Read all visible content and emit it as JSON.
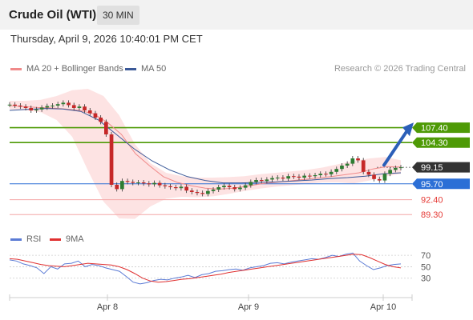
{
  "header": {
    "title": "Crude Oil (WTI)",
    "interval": "30 MIN"
  },
  "datetime": "Thursday, April 9, 2026 10:40:01 PM CET",
  "legend": {
    "ma20": {
      "label": "MA 20 + Bollinger Bands",
      "color": "#f08a8a"
    },
    "ma50": {
      "label": "MA 50",
      "color": "#3b5998"
    },
    "credit": "Research © 2026 Trading Central"
  },
  "rsi_legend": {
    "rsi": {
      "label": "RSI",
      "color": "#5b7bd5"
    },
    "ma9": {
      "label": "9MA",
      "color": "#e03030"
    }
  },
  "colors": {
    "resistance": "#4e9a06",
    "support": "#f4a6a6",
    "pivot": "#2b6fd6",
    "price": "#333333",
    "up": "#2e7d32",
    "down": "#c62828"
  },
  "chart_data": {
    "type": "line",
    "title": "Crude Oil (WTI)",
    "xlabel": "",
    "ylabel": "",
    "x_ticks": [
      "Apr 8",
      "Apr 9",
      "Apr 10"
    ],
    "ylim": [
      86,
      116
    ],
    "price_levels": [
      {
        "label": "107.40",
        "value": 107.4,
        "kind": "resistance"
      },
      {
        "label": "104.30",
        "value": 104.3,
        "kind": "resistance"
      },
      {
        "label": "99.15",
        "value": 99.15,
        "kind": "last"
      },
      {
        "label": "95.70",
        "value": 95.7,
        "kind": "pivot"
      },
      {
        "label": "92.40",
        "value": 92.4,
        "kind": "support"
      },
      {
        "label": "89.30",
        "value": 89.3,
        "kind": "support"
      }
    ],
    "series": [
      {
        "name": "Price",
        "values": [
          112.2,
          112.0,
          111.8,
          111.5,
          111.0,
          111.2,
          111.6,
          111.9,
          112.0,
          112.3,
          112.6,
          112.1,
          111.5,
          111.8,
          111.0,
          110.4,
          109.5,
          108.6,
          106.0,
          95.5,
          94.6,
          96.3,
          96.1,
          95.9,
          96.0,
          95.8,
          95.6,
          95.9,
          95.4,
          95.2,
          95.0,
          94.8,
          95.1,
          94.3,
          94.0,
          93.8,
          93.6,
          94.2,
          94.5,
          95.0,
          95.3,
          95.0,
          94.6,
          94.9,
          95.4,
          96.1,
          96.5,
          96.3,
          96.6,
          96.9,
          97.0,
          96.8,
          97.3,
          97.2,
          97.0,
          97.4,
          97.3,
          97.5,
          97.8,
          97.7,
          98.2,
          98.8,
          99.5,
          99.9,
          101.0,
          100.6,
          98.2,
          97.6,
          96.7,
          96.4,
          97.8,
          98.6,
          99.0,
          99.15
        ]
      },
      {
        "name": "MA 20",
        "values": [
          112.0,
          111.8,
          111.6,
          111.5,
          111.3,
          111.0,
          110.3,
          108.5,
          106.0,
          102.0,
          99.5,
          97.2,
          96.0,
          95.3,
          94.8,
          94.6,
          94.8,
          95.2,
          95.7,
          96.0,
          96.3,
          96.6,
          96.9,
          97.2,
          97.6,
          98.0,
          98.8,
          99.3,
          99.2
        ]
      },
      {
        "name": "MA 50",
        "values": [
          111.0,
          111.2,
          111.4,
          111.3,
          110.8,
          109.0,
          106.0,
          103.0,
          100.5,
          98.6,
          97.2,
          96.4,
          95.9,
          95.9,
          96.0,
          96.1,
          96.3,
          96.5,
          96.8,
          97.0,
          97.3,
          97.8,
          98.0
        ]
      }
    ],
    "bollinger": {
      "upper": [
        113.0,
        113.0,
        113.2,
        114.0,
        115.2,
        115.5,
        114.0,
        110.0,
        104.0,
        100.0,
        98.0,
        97.3,
        97.0,
        97.0,
        97.1,
        97.3,
        97.7,
        98.0,
        98.3,
        98.6,
        99.1,
        99.8,
        100.5,
        101.0,
        101.3,
        100.6
      ],
      "lower": [
        111.2,
        111.0,
        110.6,
        109.0,
        105.5,
        98.5,
        92.0,
        88.5,
        88.4,
        91.0,
        92.6,
        93.0,
        92.9,
        93.1,
        93.6,
        94.2,
        94.7,
        95.1,
        95.4,
        95.7,
        96.0,
        96.0,
        95.8,
        96.4,
        97.2,
        97.8
      ]
    },
    "rsi": {
      "axis_ticks": [
        "70",
        "50",
        "30"
      ],
      "ylim": [
        10,
        80
      ],
      "series": [
        {
          "name": "RSI",
          "values": [
            62,
            60,
            55,
            52,
            48,
            38,
            50,
            46,
            55,
            56,
            60,
            50,
            54,
            52,
            48,
            45,
            42,
            33,
            23,
            20,
            22,
            26,
            28,
            27,
            30,
            32,
            35,
            31,
            36,
            38,
            42,
            43,
            45,
            46,
            44,
            48,
            50,
            52,
            56,
            57,
            55,
            58,
            60,
            62,
            64,
            63,
            66,
            70,
            68,
            72,
            74,
            60,
            52,
            45,
            48,
            52,
            54,
            55
          ]
        },
        {
          "name": "9MA",
          "values": [
            64,
            63,
            60,
            57,
            54,
            52,
            51,
            50,
            52,
            54,
            56,
            55,
            54,
            53,
            50,
            45,
            38,
            30,
            25,
            23,
            24,
            26,
            28,
            29,
            31,
            33,
            35,
            37,
            40,
            42,
            44,
            46,
            48,
            50,
            52,
            54,
            56,
            58,
            60,
            62,
            64,
            66,
            68,
            70,
            72,
            71,
            66,
            60,
            54,
            50,
            48
          ]
        }
      ]
    }
  }
}
